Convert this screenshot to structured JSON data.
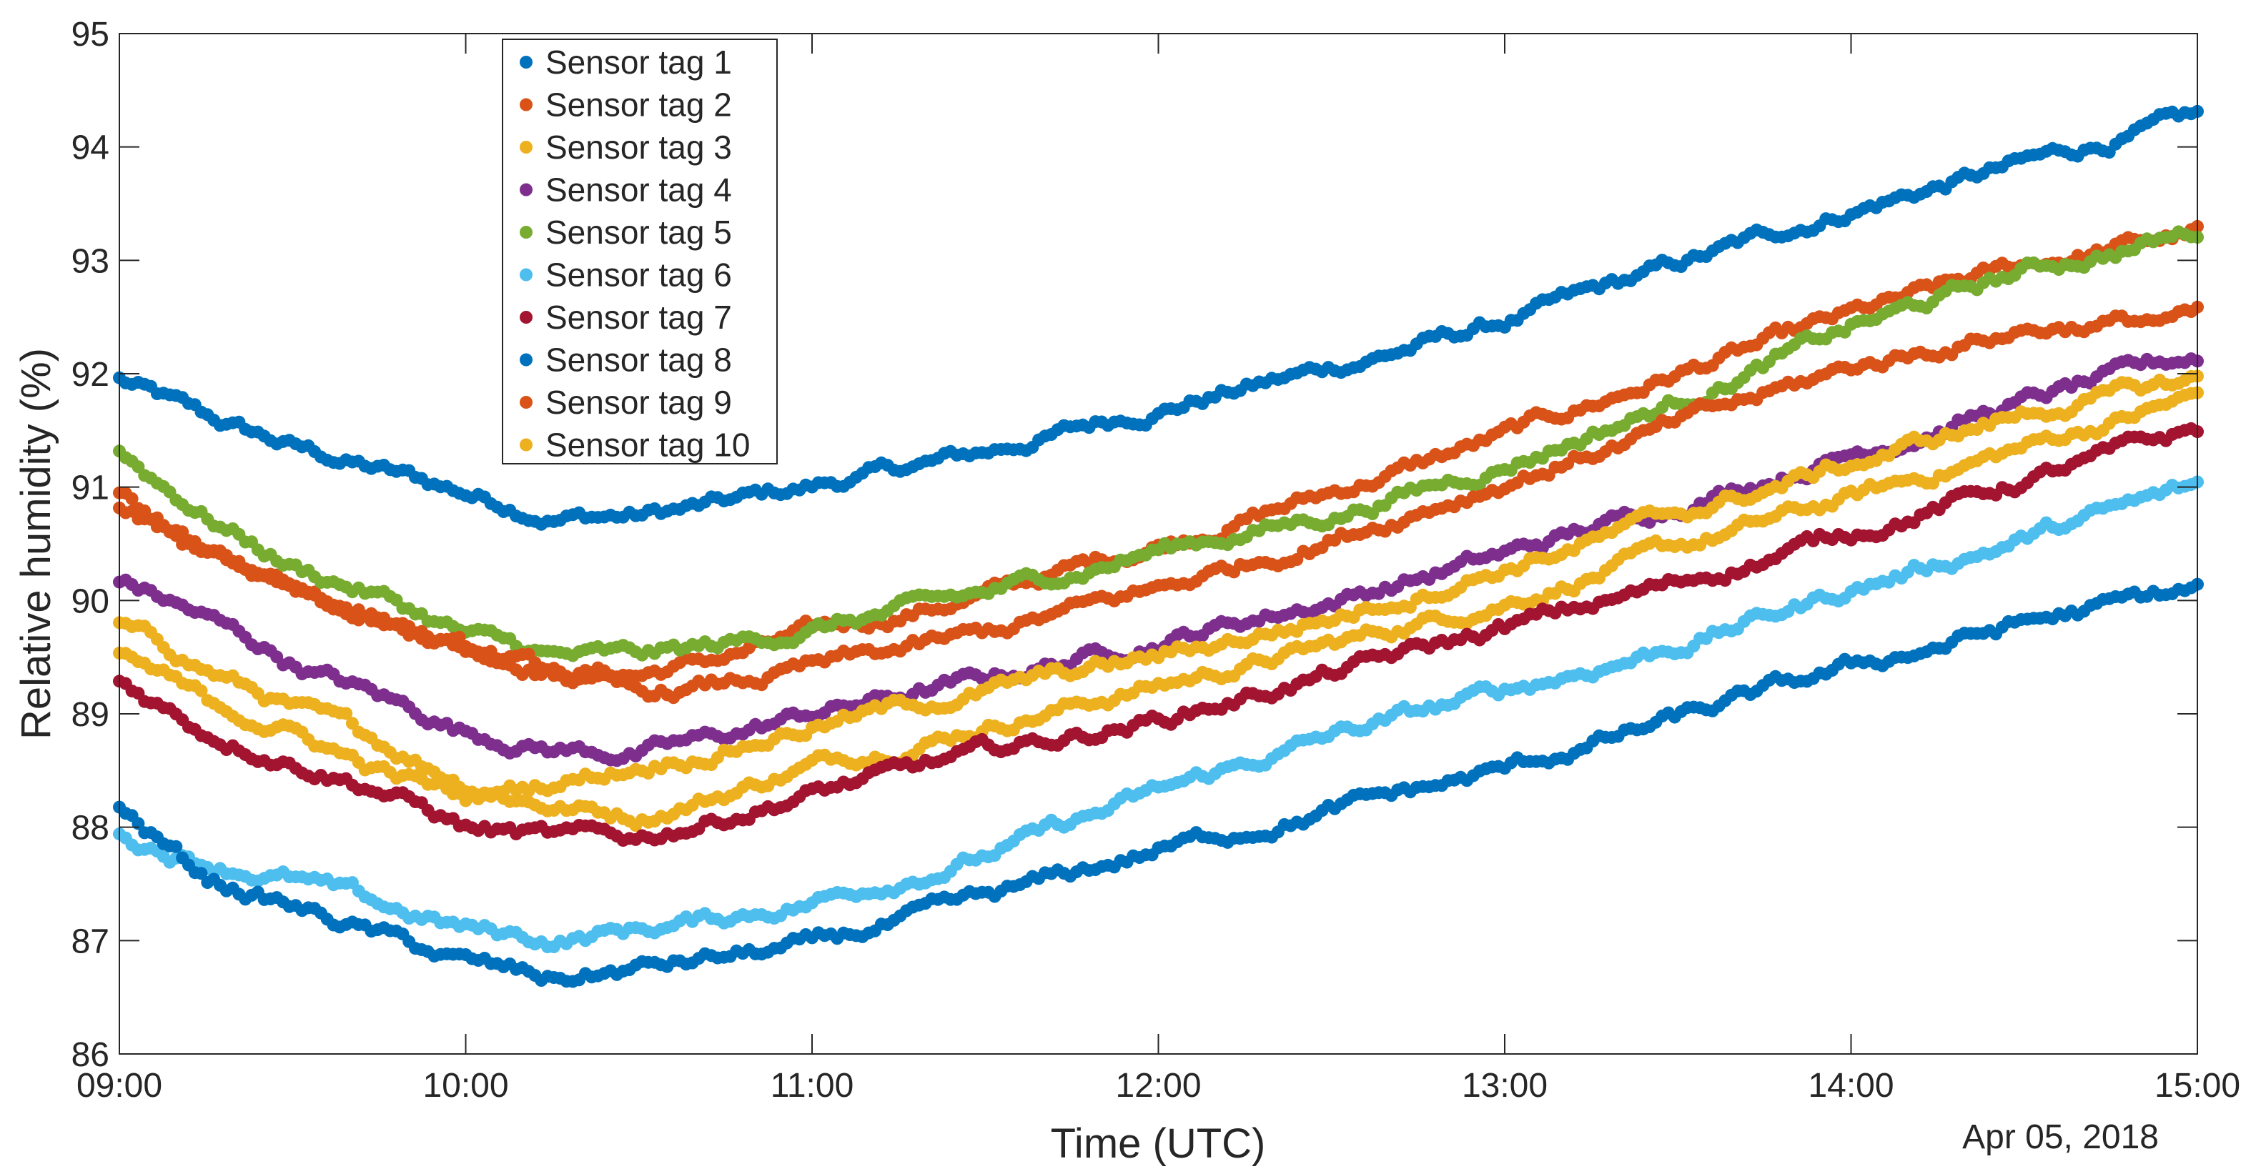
{
  "chart_data": {
    "type": "scatter",
    "title": "",
    "xlabel": "Time (UTC)",
    "ylabel": "Relative humidity (%)",
    "date_label": "Apr 05, 2018",
    "x_ticks": [
      "09:00",
      "10:00",
      "11:00",
      "12:00",
      "13:00",
      "14:00",
      "15:00"
    ],
    "y_ticks": [
      "86",
      "87",
      "88",
      "89",
      "90",
      "91",
      "92",
      "93",
      "94",
      "95"
    ],
    "xlim": [
      9,
      15
    ],
    "ylim": [
      86,
      95
    ],
    "grid": false,
    "legend_position": "top-left",
    "series": [
      {
        "name": "Sensor tag 1",
        "color": "#0072BD",
        "x": [
          9,
          9.25,
          9.5,
          9.75,
          10,
          10.25,
          10.5,
          10.75,
          11,
          11.5,
          12,
          12.5,
          13,
          13.5,
          14,
          14.5,
          15
        ],
        "y": [
          91.95,
          91.6,
          91.35,
          91.15,
          90.95,
          90.75,
          90.75,
          90.85,
          91.0,
          91.3,
          91.7,
          92.05,
          92.45,
          92.95,
          93.45,
          93.85,
          94.25
        ]
      },
      {
        "name": "Sensor tag 2",
        "color": "#D95319",
        "x": [
          9,
          9.25,
          9.5,
          9.75,
          10,
          10.25,
          10.5,
          10.75,
          11,
          11.5,
          12,
          12.5,
          13,
          13.5,
          14,
          14.5,
          15
        ],
        "y": [
          90.95,
          90.4,
          90.15,
          89.9,
          89.6,
          89.4,
          89.35,
          89.5,
          89.7,
          90.05,
          90.5,
          90.95,
          91.45,
          92.0,
          92.5,
          92.95,
          93.25
        ]
      },
      {
        "name": "Sensor tag 3",
        "color": "#EDB120",
        "x": [
          9,
          9.25,
          9.5,
          9.75,
          10,
          10.25,
          10.5,
          10.75,
          11,
          11.5,
          12,
          12.5,
          13,
          13.5,
          14,
          14.5,
          15
        ],
        "y": [
          89.8,
          89.4,
          89.05,
          88.75,
          88.4,
          88.2,
          88.1,
          88.3,
          88.55,
          88.9,
          89.25,
          89.6,
          90.0,
          90.45,
          90.9,
          91.35,
          91.8
        ]
      },
      {
        "name": "Sensor tag 4",
        "color": "#7E2F8E",
        "x": [
          9,
          9.25,
          9.5,
          9.75,
          10,
          10.25,
          10.5,
          10.75,
          11,
          11.5,
          12,
          12.5,
          13,
          13.5,
          14,
          14.5,
          15
        ],
        "y": [
          90.2,
          89.85,
          89.45,
          89.15,
          88.85,
          88.7,
          88.65,
          88.8,
          89.0,
          89.3,
          89.65,
          90.0,
          90.4,
          90.85,
          91.3,
          91.75,
          92.15
        ]
      },
      {
        "name": "Sensor tag 5",
        "color": "#77AC30",
        "x": [
          9,
          9.25,
          9.5,
          9.75,
          10,
          10.25,
          10.5,
          10.75,
          11,
          11.5,
          12,
          12.5,
          13,
          13.5,
          14,
          14.5,
          15
        ],
        "y": [
          91.3,
          90.75,
          90.3,
          90.05,
          89.7,
          89.5,
          89.5,
          89.6,
          89.75,
          90.05,
          90.45,
          90.75,
          91.2,
          91.75,
          92.4,
          92.9,
          93.25
        ]
      },
      {
        "name": "Sensor tag 6",
        "color": "#4DBEEE",
        "x": [
          9,
          9.25,
          9.5,
          9.75,
          10,
          10.25,
          10.5,
          10.75,
          11,
          11.5,
          12,
          12.5,
          13,
          13.5,
          14,
          14.5,
          15
        ],
        "y": [
          87.9,
          87.7,
          87.55,
          87.3,
          87.1,
          87.0,
          87.1,
          87.2,
          87.35,
          87.75,
          88.3,
          88.8,
          89.2,
          89.6,
          90.1,
          90.55,
          91.0
        ]
      },
      {
        "name": "Sensor tag 7",
        "color": "#A2142F",
        "x": [
          9,
          9.25,
          9.5,
          9.75,
          10,
          10.25,
          10.5,
          10.75,
          11,
          11.5,
          12,
          12.5,
          13,
          13.5,
          14,
          14.5,
          15
        ],
        "y": [
          89.3,
          88.85,
          88.6,
          88.35,
          88.0,
          87.9,
          87.9,
          88.1,
          88.3,
          88.65,
          88.95,
          89.35,
          89.75,
          90.15,
          90.6,
          91.05,
          91.5
        ]
      },
      {
        "name": "Sensor tag 8",
        "color": "#0072BD",
        "x": [
          9,
          9.25,
          9.5,
          9.75,
          10,
          10.25,
          10.5,
          10.75,
          11,
          11.5,
          12,
          12.5,
          13,
          13.5,
          14,
          14.5,
          15
        ],
        "y": [
          88.15,
          87.55,
          87.3,
          87.05,
          86.8,
          86.65,
          86.75,
          86.85,
          86.95,
          87.35,
          87.8,
          88.15,
          88.5,
          88.95,
          89.4,
          89.8,
          90.1
        ]
      },
      {
        "name": "Sensor tag 9",
        "color": "#D95319",
        "x": [
          9,
          9.25,
          9.5,
          9.75,
          10,
          10.25,
          10.5,
          10.75,
          11,
          11.5,
          12,
          12.5,
          13,
          13.5,
          14,
          14.5,
          15
        ],
        "y": [
          90.8,
          90.45,
          90.15,
          89.85,
          89.55,
          89.35,
          89.15,
          89.25,
          89.4,
          89.7,
          90.1,
          90.55,
          91.05,
          91.55,
          92.05,
          92.4,
          92.5
        ]
      },
      {
        "name": "Sensor tag 10",
        "color": "#EDB120",
        "x": [
          9,
          9.25,
          9.5,
          9.75,
          10,
          10.25,
          10.5,
          10.75,
          11,
          11.5,
          12,
          12.5,
          13,
          13.5,
          14,
          14.5,
          15
        ],
        "y": [
          89.55,
          89.1,
          88.85,
          88.5,
          88.25,
          88.4,
          88.55,
          88.7,
          88.9,
          89.2,
          89.5,
          89.85,
          90.3,
          90.75,
          91.2,
          91.65,
          91.95
        ]
      }
    ]
  }
}
